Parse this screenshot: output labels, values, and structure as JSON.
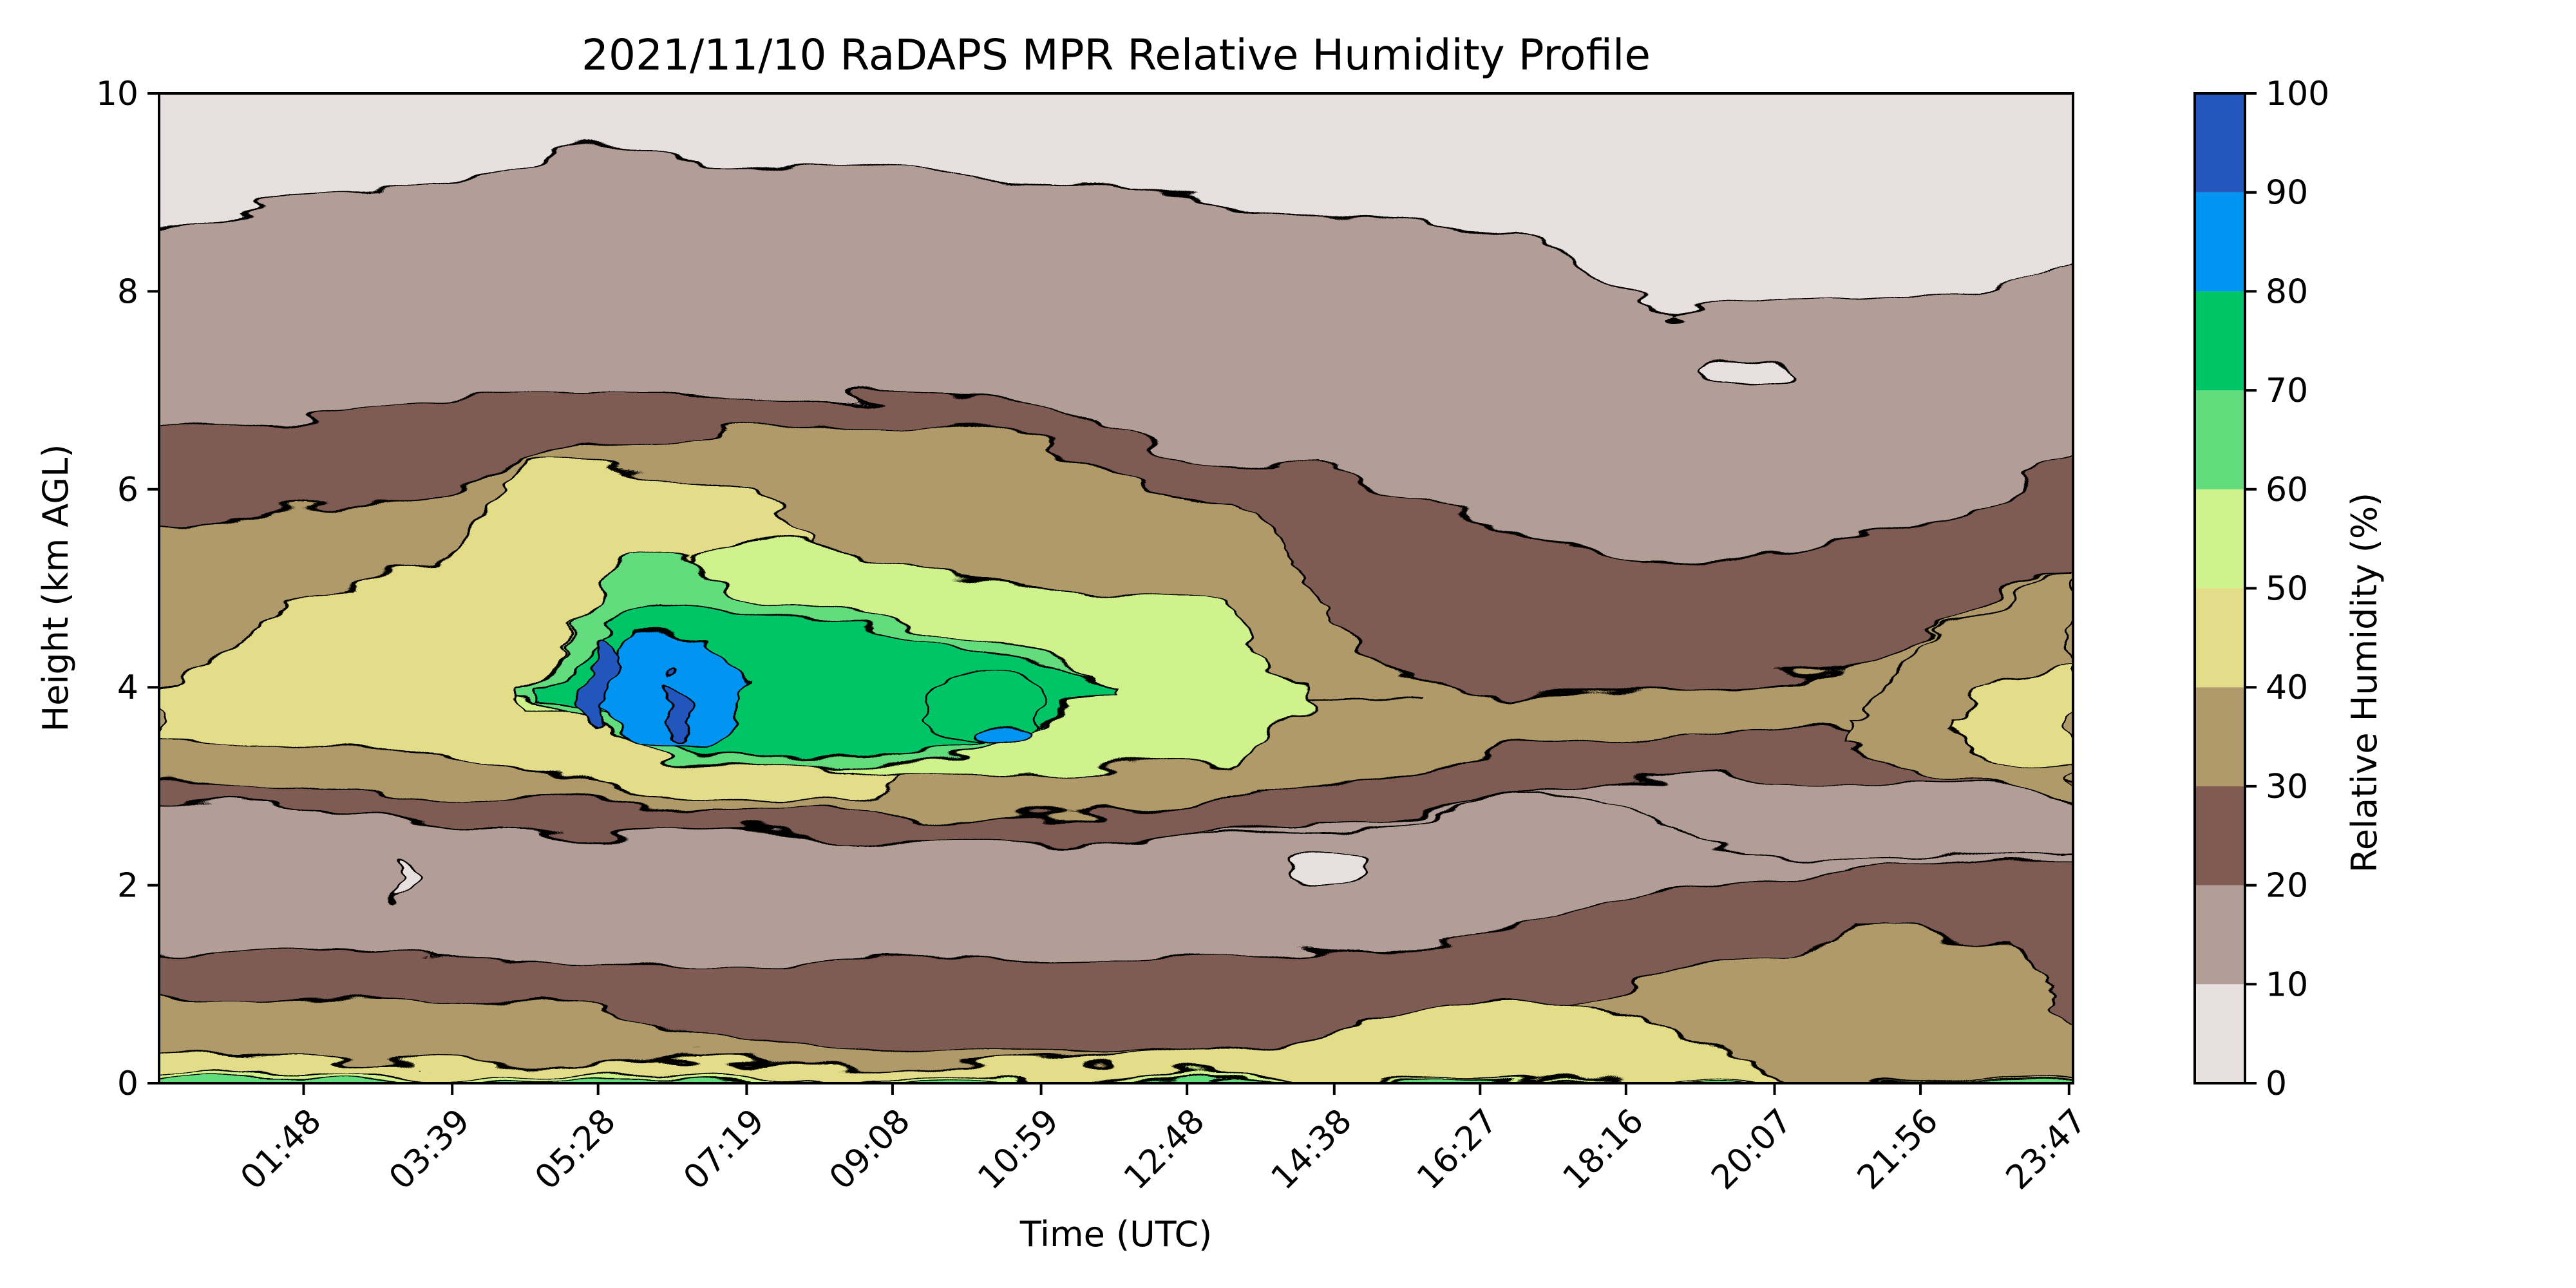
{
  "chart_data": {
    "type": "filled-contour",
    "title": "2021/11/10 RaDAPS MPR Relative Humidity Profile",
    "xlabel": "Time (UTC)",
    "ylabel": "Height (km AGL)",
    "colorbar_label": "Relative Humidity (%)",
    "ylim": [
      0,
      10
    ],
    "xlim": [
      "00:00",
      "23:50"
    ],
    "x_tick_labels": [
      "01:48",
      "03:39",
      "05:28",
      "07:19",
      "09:08",
      "10:59",
      "12:48",
      "14:38",
      "16:27",
      "18:16",
      "20:07",
      "21:56",
      "23:47"
    ],
    "y_tick_labels": [
      "0",
      "2",
      "4",
      "6",
      "8",
      "10"
    ],
    "y_ticks": [
      0,
      2,
      4,
      6,
      8,
      10
    ],
    "colorbar_levels": [
      0,
      10,
      20,
      30,
      40,
      50,
      60,
      70,
      80,
      90,
      100
    ],
    "colorbar_tick_labels": [
      "0",
      "10",
      "20",
      "30",
      "40",
      "50",
      "60",
      "70",
      "80",
      "90",
      "100"
    ],
    "colorbar_colors": [
      "#e8e0df",
      "#b29d97",
      "#7f5b52",
      "#b09a6b",
      "#e3dd8a",
      "#d0f28c",
      "#62dc7c",
      "#00c566",
      "#0095f2",
      "#2457bd"
    ],
    "grid": false,
    "profile_layers": [
      {
        "rh_band": "0-10",
        "region": "upper atmosphere above cloud-free top",
        "from_km": 8.6,
        "to_km": 10
      },
      {
        "rh_band": "10-20",
        "region": "upper dry layer",
        "from_km": 6.8,
        "to_km": 8.6
      },
      {
        "rh_band": "20-30",
        "region": "mid moist layer edges",
        "from_km": 2.5,
        "to_km": 6.8
      },
      {
        "rh_band": "40-90",
        "region": "moist core around 3.5-4.5 km, 05:00-13:00 UTC",
        "from_km": 2.7,
        "to_km": 5.5
      },
      {
        "rh_band": "10-20",
        "region": "dry layer",
        "from_km": 1.3,
        "to_km": 2.5
      },
      {
        "rh_band": "20-40",
        "region": "boundary layer",
        "from_km": 0,
        "to_km": 1.3
      }
    ]
  }
}
